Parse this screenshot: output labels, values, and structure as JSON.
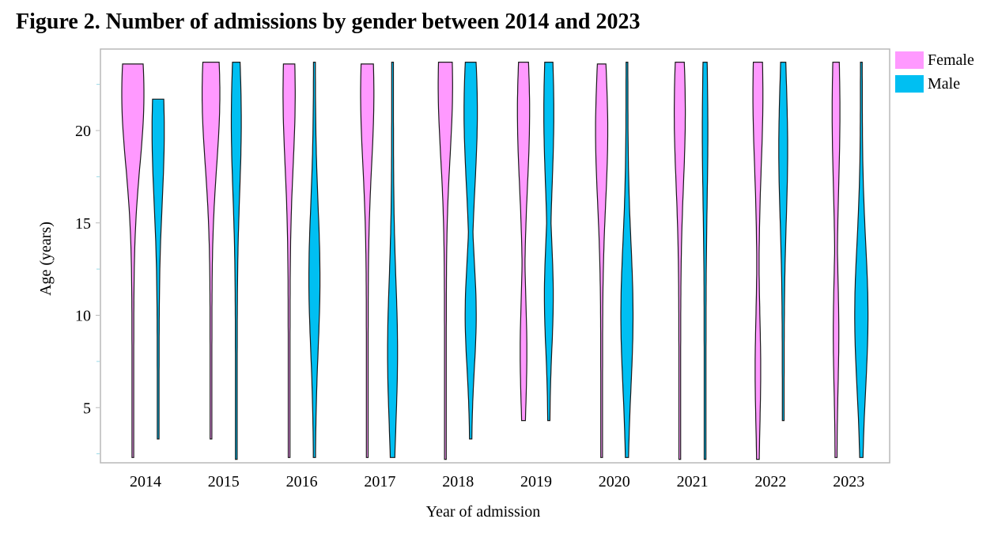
{
  "chart_data": {
    "type": "violin",
    "title": "Figure 2. Number of admissions by gender between 2014 and 2023",
    "xlabel": "Year of admission",
    "ylabel": "Age (years)",
    "categories": [
      "2014",
      "2015",
      "2016",
      "2017",
      "2018",
      "2019",
      "2020",
      "2021",
      "2022",
      "2023"
    ],
    "y_ticks": [
      5,
      10,
      15,
      20
    ],
    "ylim": [
      2.3,
      24
    ],
    "grid": false,
    "legend_position": "right",
    "series": [
      {
        "name": "Female",
        "color": "#ff99ff",
        "min": [
          2.3,
          3.3,
          2.3,
          2.3,
          2.2,
          4.3,
          2.3,
          2.2,
          2.2,
          2.3
        ],
        "max": [
          23.6,
          23.7,
          23.6,
          23.6,
          23.7,
          23.7,
          23.6,
          23.7,
          23.7,
          23.7
        ],
        "peak_age": [
          22.0,
          22.0,
          22.0,
          22.0,
          22.5,
          21.0,
          20.0,
          21.0,
          22.0,
          21.0
        ],
        "max_halfwidth": [
          1.0,
          0.8,
          0.55,
          0.6,
          0.65,
          0.55,
          0.55,
          0.5,
          0.45,
          0.35
        ],
        "secondary_peak_age": [
          null,
          null,
          null,
          null,
          null,
          8.0,
          null,
          null,
          7.0,
          9.0
        ],
        "secondary_halfwidth": [
          0,
          0,
          0,
          0,
          0,
          0.3,
          0,
          0,
          0.25,
          0.25
        ]
      },
      {
        "name": "Male",
        "color": "#00bff2",
        "min": [
          3.3,
          2.2,
          2.3,
          2.3,
          3.3,
          4.3,
          2.3,
          2.2,
          4.3,
          2.3
        ],
        "max": [
          21.7,
          23.7,
          23.7,
          23.7,
          23.7,
          23.7,
          23.7,
          23.7,
          23.7,
          23.7
        ],
        "peak_age": [
          20.0,
          20.5,
          12.0,
          8.0,
          21.0,
          21.0,
          10.0,
          20.0,
          19.0,
          10.0
        ],
        "max_halfwidth": [
          0.55,
          0.45,
          0.5,
          0.45,
          0.6,
          0.45,
          0.55,
          0.25,
          0.4,
          0.6
        ],
        "secondary_peak_age": [
          null,
          null,
          null,
          null,
          10.0,
          11.0,
          null,
          null,
          null,
          null
        ],
        "secondary_halfwidth": [
          0,
          0,
          0,
          0,
          0.5,
          0.4,
          0,
          0,
          0,
          0
        ]
      }
    ]
  }
}
